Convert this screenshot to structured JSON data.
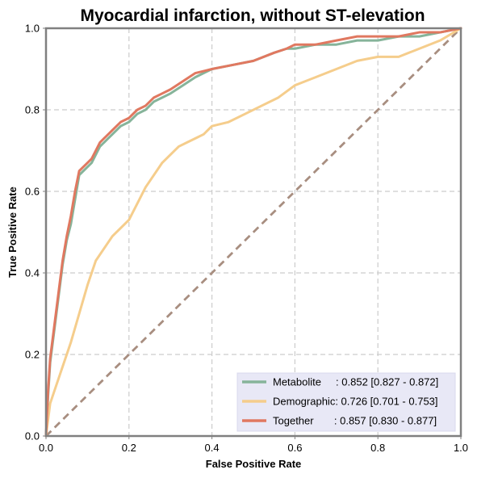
{
  "chart_data": {
    "type": "line",
    "title": "Myocardial infarction, without ST-elevation",
    "xlabel": "False Positive Rate",
    "ylabel": "True Positive Rate",
    "xlim": [
      0,
      1
    ],
    "ylim": [
      0,
      1
    ],
    "xticks": [
      "0.0",
      "0.2",
      "0.4",
      "0.6",
      "0.8",
      "1.0"
    ],
    "yticks": [
      "0.0",
      "0.2",
      "0.4",
      "0.6",
      "0.8",
      "1.0"
    ],
    "grid": true,
    "legend_position": "lower-right",
    "series": [
      {
        "name": "Metabolite",
        "legend_label": "Metabolite     : 0.852 [0.827 - 0.872]",
        "color": "#86b49a",
        "x": [
          0.0,
          0.005,
          0.01,
          0.02,
          0.03,
          0.04,
          0.05,
          0.06,
          0.07,
          0.08,
          0.09,
          0.1,
          0.11,
          0.12,
          0.13,
          0.14,
          0.15,
          0.16,
          0.18,
          0.2,
          0.22,
          0.24,
          0.26,
          0.28,
          0.3,
          0.33,
          0.36,
          0.4,
          0.45,
          0.5,
          0.55,
          0.58,
          0.6,
          0.65,
          0.7,
          0.75,
          0.8,
          0.85,
          0.9,
          0.95,
          1.0
        ],
        "y": [
          0.0,
          0.1,
          0.18,
          0.26,
          0.34,
          0.42,
          0.48,
          0.52,
          0.58,
          0.64,
          0.65,
          0.66,
          0.67,
          0.69,
          0.71,
          0.72,
          0.73,
          0.74,
          0.76,
          0.77,
          0.79,
          0.8,
          0.82,
          0.83,
          0.84,
          0.86,
          0.88,
          0.9,
          0.91,
          0.92,
          0.94,
          0.95,
          0.95,
          0.96,
          0.96,
          0.97,
          0.97,
          0.98,
          0.98,
          0.99,
          1.0
        ]
      },
      {
        "name": "Demographic",
        "legend_label": "Demographic: 0.726 [0.701 - 0.753]",
        "color": "#f5cd8c",
        "x": [
          0.0,
          0.005,
          0.01,
          0.02,
          0.03,
          0.04,
          0.05,
          0.06,
          0.08,
          0.1,
          0.12,
          0.14,
          0.16,
          0.18,
          0.2,
          0.22,
          0.24,
          0.26,
          0.28,
          0.3,
          0.32,
          0.34,
          0.36,
          0.38,
          0.4,
          0.44,
          0.48,
          0.52,
          0.56,
          0.6,
          0.65,
          0.7,
          0.75,
          0.8,
          0.85,
          0.9,
          0.95,
          1.0
        ],
        "y": [
          0.0,
          0.04,
          0.08,
          0.11,
          0.14,
          0.17,
          0.2,
          0.23,
          0.3,
          0.37,
          0.43,
          0.46,
          0.49,
          0.51,
          0.53,
          0.57,
          0.61,
          0.64,
          0.67,
          0.69,
          0.71,
          0.72,
          0.73,
          0.74,
          0.76,
          0.77,
          0.79,
          0.81,
          0.83,
          0.86,
          0.88,
          0.9,
          0.92,
          0.93,
          0.93,
          0.95,
          0.97,
          1.0
        ]
      },
      {
        "name": "Together",
        "legend_label": "Together       : 0.857 [0.830 - 0.877]",
        "color": "#e07860",
        "x": [
          0.0,
          0.005,
          0.01,
          0.02,
          0.03,
          0.04,
          0.05,
          0.06,
          0.07,
          0.08,
          0.09,
          0.1,
          0.11,
          0.12,
          0.13,
          0.14,
          0.15,
          0.16,
          0.18,
          0.2,
          0.22,
          0.24,
          0.26,
          0.28,
          0.3,
          0.33,
          0.36,
          0.4,
          0.45,
          0.5,
          0.55,
          0.58,
          0.6,
          0.65,
          0.7,
          0.75,
          0.8,
          0.85,
          0.9,
          0.95,
          1.0
        ],
        "y": [
          0.0,
          0.11,
          0.19,
          0.27,
          0.35,
          0.43,
          0.49,
          0.54,
          0.6,
          0.65,
          0.66,
          0.67,
          0.68,
          0.7,
          0.72,
          0.73,
          0.74,
          0.75,
          0.77,
          0.78,
          0.8,
          0.81,
          0.83,
          0.84,
          0.85,
          0.87,
          0.89,
          0.9,
          0.91,
          0.92,
          0.94,
          0.95,
          0.96,
          0.96,
          0.97,
          0.98,
          0.98,
          0.98,
          0.99,
          0.99,
          1.0
        ]
      },
      {
        "name": "",
        "role": "chance-diagonal",
        "color": "#a88e80",
        "dashed": true,
        "x": [
          0,
          1
        ],
        "y": [
          0,
          1
        ]
      }
    ]
  }
}
